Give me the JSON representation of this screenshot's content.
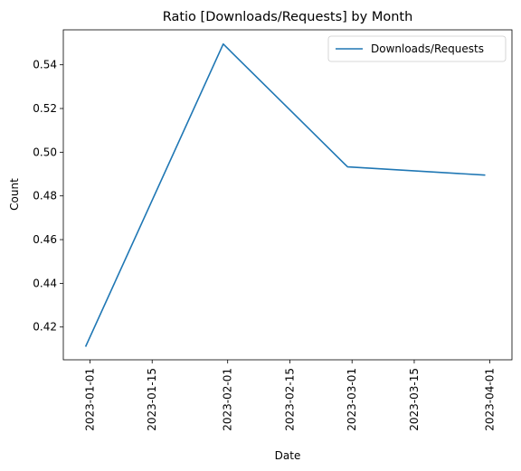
{
  "chart_data": {
    "type": "line",
    "title": "Ratio [Downloads/Requests] by Month",
    "xlabel": "Date",
    "ylabel": "Count",
    "x_type": "date",
    "xlim": [
      "2022-12-26",
      "2023-04-06"
    ],
    "ylim": [
      0.405,
      0.556
    ],
    "x_ticks": [
      "2023-01-01",
      "2023-01-15",
      "2023-02-01",
      "2023-02-15",
      "2023-03-01",
      "2023-03-15",
      "2023-04-01"
    ],
    "y_ticks": [
      0.42,
      0.44,
      0.46,
      0.48,
      0.5,
      0.52,
      0.54
    ],
    "y_tick_labels": [
      "0.42",
      "0.44",
      "0.46",
      "0.48",
      "0.50",
      "0.52",
      "0.54"
    ],
    "grid": false,
    "legend": {
      "position": "top-right"
    },
    "series": [
      {
        "name": "Downloads/Requests",
        "color": "#1f77b4",
        "x": [
          "2022-12-31",
          "2023-01-31",
          "2023-02-28",
          "2023-03-31"
        ],
        "y": [
          0.411,
          0.5495,
          0.4933,
          0.4895
        ]
      }
    ]
  }
}
